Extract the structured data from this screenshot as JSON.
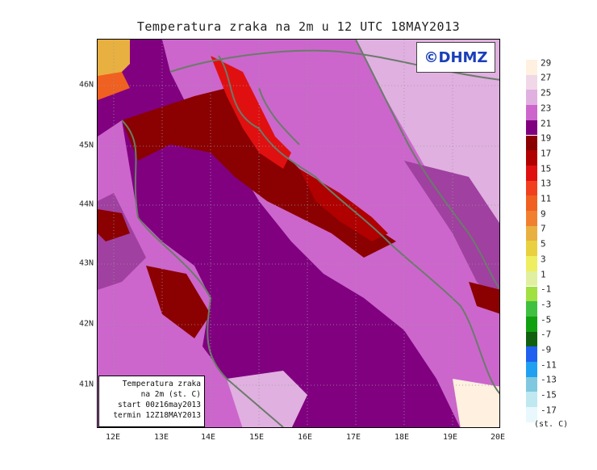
{
  "title": "Temperatura zraka na 2m u 12 UTC 18MAY2013",
  "logo_text": "©DHMZ",
  "info_box": {
    "line1": "Temperatura zraka",
    "line2": "na 2m (st. C)",
    "line3": "start 00z16may2013",
    "line4": "termin 12Z18MAY2013"
  },
  "lat_labels": [
    "46N",
    "45N",
    "44N",
    "43N",
    "42N",
    "41N"
  ],
  "lon_labels": [
    "12E",
    "13E",
    "14E",
    "15E",
    "16E",
    "17E",
    "18E",
    "19E",
    "20E"
  ],
  "legend": {
    "units": "(st. C)",
    "labels": [
      "29",
      "27",
      "25",
      "23",
      "21",
      "19",
      "17",
      "15",
      "13",
      "11",
      "9",
      "7",
      "5",
      "3",
      "1",
      "-1",
      "-3",
      "-5",
      "-7",
      "-9",
      "-11",
      "-13",
      "-15",
      "-17"
    ],
    "colors": [
      "#fff0e0",
      "#f0d8e8",
      "#e0b0e0",
      "#cc66cc",
      "#800080",
      "#8b0000",
      "#b00000",
      "#e01010",
      "#f04020",
      "#f06020",
      "#f08030",
      "#e8b040",
      "#e8d040",
      "#eeee60",
      "#e0f0a0",
      "#a0e040",
      "#40c040",
      "#10a010",
      "#106010",
      "#2060f0",
      "#20a0f0",
      "#80c8e0",
      "#c0e8f0",
      "#e8f8fc"
    ]
  },
  "colors": {
    "sea": "#800080",
    "land_warm": "#cc66cc",
    "land_mild": "#e0b0e0",
    "hot": "#b00000",
    "hotter": "#e01010",
    "coast": "#6b7b6b"
  }
}
